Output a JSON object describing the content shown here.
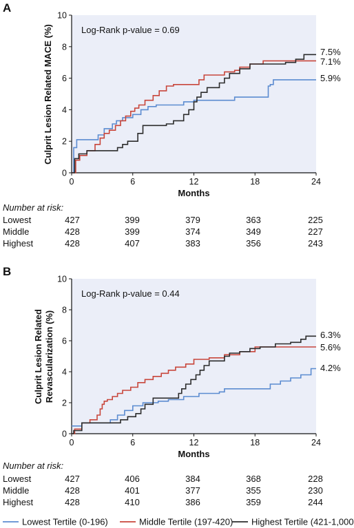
{
  "chart_data": [
    {
      "panel_label": "A",
      "type": "line",
      "step": true,
      "ylabel": "Culprit Lesion Related MACE (%)",
      "xlabel": "Months",
      "xlim": [
        0,
        24
      ],
      "ylim": [
        0,
        10
      ],
      "xticks": [
        "0",
        "6",
        "12",
        "18",
        "24"
      ],
      "yticks": [
        "0",
        "2",
        "4",
        "6",
        "8",
        "10"
      ],
      "annotation": "Log-Rank p-value = 0.69",
      "grid": false,
      "series": [
        {
          "name": "Lowest Tertile (0-196)",
          "end_label": "5.9%",
          "x": [
            0,
            0.2,
            0.5,
            1.0,
            2.6,
            3.2,
            4.0,
            4.4,
            5.0,
            6.0,
            6.8,
            7.5,
            8.3,
            9.0,
            11.0,
            12.0,
            12.5,
            14.5,
            16.0,
            19.3,
            19.5,
            19.8,
            24
          ],
          "y": [
            0,
            1.6,
            2.1,
            2.1,
            2.4,
            2.8,
            3.1,
            3.3,
            3.5,
            3.7,
            4.0,
            4.2,
            4.3,
            4.3,
            4.5,
            4.6,
            4.6,
            4.6,
            4.8,
            5.5,
            5.6,
            5.9,
            5.9
          ]
        },
        {
          "name": "Middle Tertile (197-420)",
          "end_label": "7.1%",
          "x": [
            0,
            0.4,
            0.8,
            1.5,
            2.3,
            2.8,
            3.2,
            3.7,
            4.3,
            4.8,
            5.3,
            5.8,
            6.2,
            6.6,
            7.2,
            8.0,
            8.6,
            9.3,
            10.0,
            11.0,
            12.5,
            13.0,
            14.5,
            15.0,
            16.0,
            16.5,
            17.5,
            18.8,
            24
          ],
          "y": [
            0,
            0.8,
            1.1,
            1.4,
            1.8,
            2.2,
            2.5,
            2.7,
            3.0,
            3.3,
            3.6,
            3.9,
            4.1,
            4.3,
            4.6,
            4.9,
            5.2,
            5.5,
            5.6,
            5.6,
            5.9,
            6.2,
            6.2,
            6.4,
            6.5,
            6.7,
            6.9,
            7.1,
            7.1
          ]
        },
        {
          "name": "Highest Tertile (421-1,000)",
          "end_label": "7.5%",
          "x": [
            0,
            0.3,
            0.7,
            1.5,
            3.5,
            4.5,
            5.0,
            5.5,
            6.5,
            7.0,
            9.3,
            10.0,
            11.0,
            11.5,
            12.0,
            12.3,
            12.7,
            13.3,
            14.5,
            15.0,
            15.5,
            16.5,
            17.5,
            19.5,
            21.0,
            22.0,
            22.8,
            24
          ],
          "y": [
            0,
            0.9,
            1.2,
            1.4,
            1.4,
            1.6,
            1.8,
            2.0,
            2.5,
            3.0,
            3.1,
            3.3,
            3.7,
            4.0,
            4.5,
            4.8,
            5.1,
            5.4,
            5.7,
            6.0,
            6.3,
            6.6,
            6.9,
            6.9,
            7.0,
            7.2,
            7.5,
            7.5
          ]
        }
      ],
      "risk_table": {
        "header": "Number at risk:",
        "rows": [
          {
            "label": "Lowest",
            "values": [
              "427",
              "399",
              "379",
              "363",
              "225"
            ]
          },
          {
            "label": "Middle",
            "values": [
              "428",
              "399",
              "374",
              "349",
              "227"
            ]
          },
          {
            "label": "Highest",
            "values": [
              "428",
              "407",
              "383",
              "356",
              "243"
            ]
          }
        ]
      }
    },
    {
      "panel_label": "B",
      "type": "line",
      "step": true,
      "ylabel": "Culprit Lesion Related Revascularization (%)",
      "xlabel": "Months",
      "xlim": [
        0,
        24
      ],
      "ylim": [
        0,
        10
      ],
      "xticks": [
        "0",
        "6",
        "12",
        "18",
        "24"
      ],
      "yticks": [
        "0",
        "2",
        "4",
        "6",
        "8",
        "10"
      ],
      "annotation": "Log-Rank p-value = 0.44",
      "grid": false,
      "series": [
        {
          "name": "Lowest Tertile (0-196)",
          "end_label": "4.2%",
          "x": [
            0,
            1.0,
            3.0,
            3.8,
            4.5,
            5.2,
            6.0,
            7.0,
            8.5,
            9.5,
            11.0,
            12.5,
            14.5,
            15.0,
            19.5,
            20.5,
            21.5,
            22.5,
            23.5,
            24
          ],
          "y": [
            0.5,
            0.7,
            0.7,
            0.9,
            1.2,
            1.5,
            1.8,
            2.0,
            2.1,
            2.2,
            2.4,
            2.6,
            2.7,
            2.9,
            3.2,
            3.4,
            3.6,
            3.8,
            4.2,
            4.2
          ]
        },
        {
          "name": "Middle Tertile (197-420)",
          "end_label": "5.6%",
          "x": [
            0,
            0.3,
            1.0,
            1.8,
            2.5,
            2.8,
            3.0,
            3.2,
            3.5,
            4.0,
            4.5,
            5.0,
            5.8,
            6.5,
            7.2,
            8.0,
            8.8,
            9.5,
            10.2,
            11.2,
            12.0,
            13.5,
            15.0,
            16.5,
            18.0,
            24
          ],
          "y": [
            0,
            0.3,
            0.7,
            0.9,
            1.2,
            1.6,
            1.9,
            2.1,
            2.2,
            2.4,
            2.6,
            2.8,
            3.0,
            3.3,
            3.5,
            3.7,
            3.9,
            4.1,
            4.3,
            4.5,
            4.8,
            4.9,
            5.1,
            5.3,
            5.6,
            5.6
          ]
        },
        {
          "name": "Highest Tertile (421-1,000)",
          "end_label": "6.3%",
          "x": [
            0,
            0.2,
            1.0,
            4.8,
            5.5,
            6.3,
            6.8,
            7.2,
            8.0,
            10.5,
            10.8,
            11.2,
            11.7,
            12.2,
            12.6,
            13.0,
            13.5,
            15.0,
            15.5,
            16.5,
            17.5,
            18.5,
            20.0,
            21.5,
            22.5,
            23.0,
            24
          ],
          "y": [
            0,
            0.2,
            0.7,
            0.9,
            1.1,
            1.3,
            1.6,
            1.9,
            2.3,
            2.6,
            2.9,
            3.2,
            3.5,
            3.8,
            4.1,
            4.4,
            4.7,
            5.0,
            5.2,
            5.3,
            5.5,
            5.6,
            5.8,
            5.9,
            6.1,
            6.3,
            6.3
          ]
        }
      ],
      "risk_table": {
        "header": "Number at risk:",
        "rows": [
          {
            "label": "Lowest",
            "values": [
              "427",
              "406",
              "384",
              "368",
              "228"
            ]
          },
          {
            "label": "Middle",
            "values": [
              "428",
              "401",
              "377",
              "355",
              "230"
            ]
          },
          {
            "label": "Highest",
            "values": [
              "428",
              "410",
              "386",
              "359",
              "244"
            ]
          }
        ]
      }
    }
  ],
  "legend": {
    "items": [
      {
        "label": "Lowest Tertile (0-196)",
        "color": "#5b8bd0"
      },
      {
        "label": "Middle Tertile (197-420)",
        "color": "#c8453a"
      },
      {
        "label": "Highest Tertile (421-1,000)",
        "color": "#2b2b2b"
      }
    ]
  },
  "colors": {
    "plot_bg": "#ebeef8",
    "lowest": "#5b8bd0",
    "middle": "#c8453a",
    "highest": "#2b2b2b"
  }
}
